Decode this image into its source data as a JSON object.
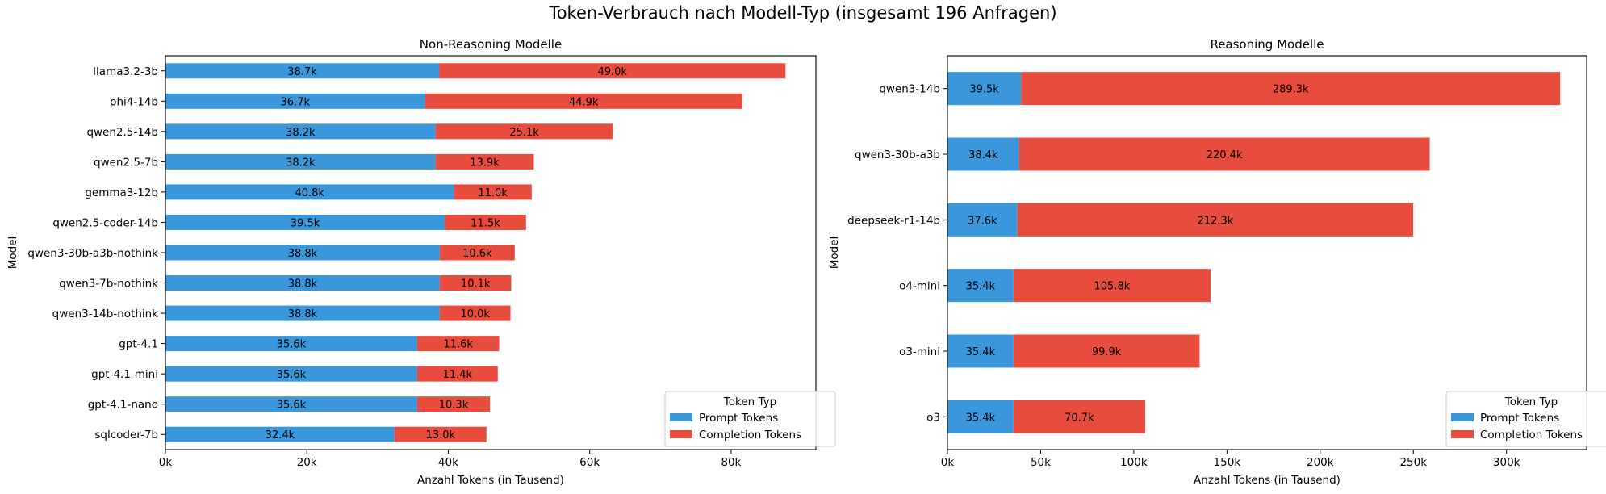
{
  "figure": {
    "title": "Token-Verbrauch nach Modell-Typ (insgesamt 196 Anfragen)"
  },
  "colors": {
    "prompt": "#3a97db",
    "completion": "#e84c3d"
  },
  "chart_data": [
    {
      "type": "bar",
      "orientation": "horizontal",
      "stacked": true,
      "title": "Non-Reasoning Modelle",
      "xlabel": "Anzahl Tokens (in Tausend)",
      "ylabel": "Model",
      "xlim": [
        0,
        92
      ],
      "xticks": [
        0,
        20,
        40,
        60,
        80
      ],
      "xtick_labels": [
        "0k",
        "20k",
        "40k",
        "60k",
        "80k"
      ],
      "categories": [
        "llama3.2-3b",
        "phi4-14b",
        "qwen2.5-14b",
        "qwen2.5-7b",
        "gemma3-12b",
        "qwen2.5-coder-14b",
        "qwen3-30b-a3b-nothink",
        "qwen3-7b-nothink",
        "qwen3-14b-nothink",
        "gpt-4.1",
        "gpt-4.1-mini",
        "gpt-4.1-nano",
        "sqlcoder-7b"
      ],
      "series": [
        {
          "name": "Prompt Tokens",
          "values": [
            38.7,
            36.7,
            38.2,
            38.2,
            40.8,
            39.5,
            38.8,
            38.8,
            38.8,
            35.6,
            35.6,
            35.6,
            32.4
          ],
          "labels": [
            "38.7k",
            "36.7k",
            "38.2k",
            "38.2k",
            "40.8k",
            "39.5k",
            "38.8k",
            "38.8k",
            "38.8k",
            "35.6k",
            "35.6k",
            "35.6k",
            "32.4k"
          ]
        },
        {
          "name": "Completion Tokens",
          "values": [
            49.0,
            44.9,
            25.1,
            13.9,
            11.0,
            11.5,
            10.6,
            10.1,
            10.0,
            11.6,
            11.4,
            10.3,
            13.0
          ],
          "labels": [
            "49.0k",
            "44.9k",
            "25.1k",
            "13.9k",
            "11.0k",
            "11.5k",
            "10.6k",
            "10.1k",
            "10.0k",
            "11.6k",
            "11.4k",
            "10.3k",
            "13.0k"
          ]
        }
      ],
      "legend": {
        "title": "Token Typ",
        "position": "lower right"
      }
    },
    {
      "type": "bar",
      "orientation": "horizontal",
      "stacked": true,
      "title": "Reasoning Modelle",
      "xlabel": "Anzahl Tokens (in Tausend)",
      "ylabel": "Model",
      "xlim": [
        0,
        343
      ],
      "xticks": [
        0,
        50,
        100,
        150,
        200,
        250,
        300
      ],
      "xtick_labels": [
        "0k",
        "50k",
        "100k",
        "150k",
        "200k",
        "250k",
        "300k"
      ],
      "categories": [
        "qwen3-14b",
        "qwen3-30b-a3b",
        "deepseek-r1-14b",
        "o4-mini",
        "o3-mini",
        "o3"
      ],
      "series": [
        {
          "name": "Prompt Tokens",
          "values": [
            39.5,
            38.4,
            37.6,
            35.4,
            35.4,
            35.4
          ],
          "labels": [
            "39.5k",
            "38.4k",
            "37.6k",
            "35.4k",
            "35.4k",
            "35.4k"
          ]
        },
        {
          "name": "Completion Tokens",
          "values": [
            289.3,
            220.4,
            212.3,
            105.8,
            99.9,
            70.7
          ],
          "labels": [
            "289.3k",
            "220.4k",
            "212.3k",
            "105.8k",
            "99.9k",
            "70.7k"
          ]
        }
      ],
      "legend": {
        "title": "Token Typ",
        "position": "lower right"
      }
    }
  ]
}
